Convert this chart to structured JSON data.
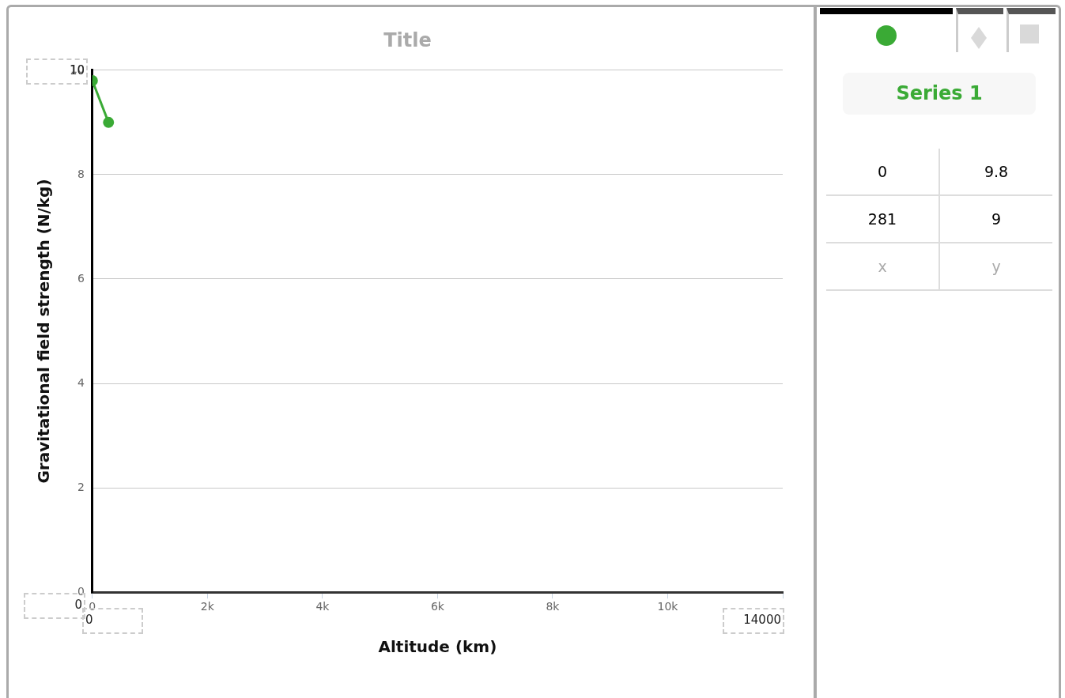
{
  "chart_data": {
    "type": "line",
    "title": "Title",
    "xlabel": "Altitude (km)",
    "ylabel": "Gravitational field strength (N/kg)",
    "x": [
      0,
      281
    ],
    "series": [
      {
        "name": "Series 1",
        "color": "#3aaa35",
        "values": [
          9.8,
          9
        ]
      }
    ],
    "xlim": [
      0,
      12000
    ],
    "xticks": [
      0,
      {
        "value": 2000,
        "label": "2k"
      },
      {
        "value": 4000,
        "label": "4k"
      },
      {
        "value": 6000,
        "label": "6k"
      },
      {
        "value": 8000,
        "label": "8k"
      },
      {
        "value": 10000,
        "label": "10k"
      },
      {
        "value": 12000,
        "label": null
      }
    ],
    "ylim": [
      0,
      10
    ],
    "yticks": [
      0,
      2,
      4,
      6,
      8,
      10
    ],
    "grid": "y",
    "legend": false,
    "marker": "circle",
    "line_style": "solid",
    "annotations": [
      "10",
      "0",
      "0",
      "14000",
      "0",
      "9.8",
      "281",
      "9",
      "x",
      "y"
    ]
  }
}
